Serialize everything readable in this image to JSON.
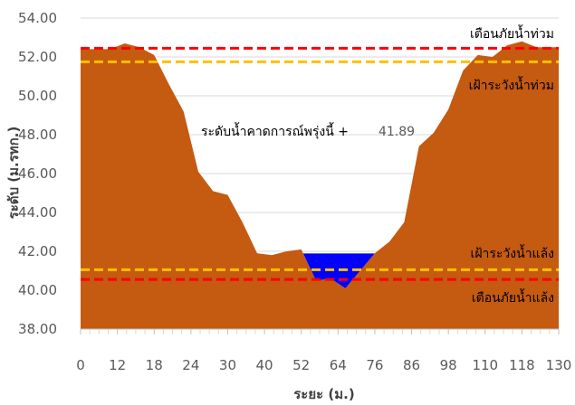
{
  "chart_data": {
    "type": "area",
    "title": "",
    "xlabel": "ระยะ (ม.)",
    "ylabel": "ระดับ (ม.รทก.)",
    "xlim": [
      0,
      130
    ],
    "ylim": [
      38,
      54
    ],
    "x_ticks": [
      "0",
      "12",
      "18",
      "24",
      "30",
      "40",
      "52",
      "64",
      "76",
      "86",
      "98",
      "110",
      "118",
      "130"
    ],
    "y_ticks": [
      "38.00",
      "40.00",
      "42.00",
      "44.00",
      "46.00",
      "48.00",
      "50.00",
      "52.00",
      "54.00"
    ],
    "grid": true,
    "series": [
      {
        "name": "",
        "kind": "ground",
        "color": "#C55A11",
        "x": [
          0,
          4,
          8,
          12,
          16,
          20,
          24,
          28,
          32,
          36,
          40,
          44,
          48,
          52,
          56,
          60,
          64,
          68,
          72,
          76,
          80,
          84,
          88,
          92,
          96,
          100,
          104,
          108,
          112,
          116,
          120,
          124,
          128,
          130
        ],
        "y": [
          52.4,
          52.4,
          52.4,
          52.7,
          52.5,
          52.1,
          50.6,
          49.2,
          46.1,
          45.1,
          44.9,
          43.5,
          41.9,
          41.8,
          42.0,
          42.1,
          40.5,
          40.6,
          40.1,
          41.0,
          41.9,
          42.5,
          43.5,
          47.4,
          48.1,
          49.3,
          51.3,
          52.1,
          52.0,
          52.6,
          52.8,
          52.5,
          52.5,
          52.5
        ]
      },
      {
        "name": "",
        "kind": "water",
        "color": "#0000FF",
        "level": 41.89
      }
    ],
    "lines": [
      {
        "label": "เตือนภัยน้ำท่วม",
        "y": 52.45,
        "color": "#FF0000"
      },
      {
        "label": "เฝ้าระวังน้ำท่วม",
        "y": 51.75,
        "color": "#FFC000"
      },
      {
        "label": "เฝ้าระวังน้ำแล้ง",
        "y": 41.05,
        "color": "#FFC000"
      },
      {
        "label": "เตือนภัยน้ำแล้ง",
        "y": 40.55,
        "color": "#FF0000"
      }
    ],
    "annotations": {
      "forecast_label": "ระดับน้ำคาดการณ์พรุ่งนี้ +",
      "forecast_value": "41.89"
    }
  }
}
